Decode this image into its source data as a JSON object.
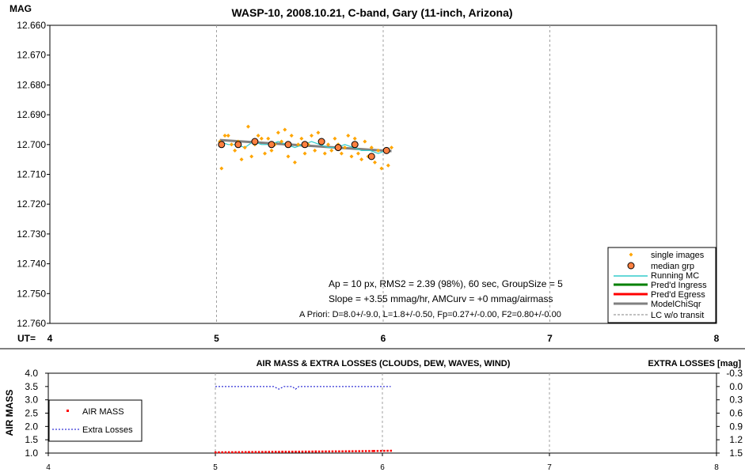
{
  "chart_data": [
    {
      "type": "scatter",
      "title": "WASP-10, 2008.10.21, C-band, Gary (11-inch, Arizona)",
      "ylabel": "MAG",
      "xlabel": "UT=",
      "y_inverted": true,
      "xlim": [
        4,
        8
      ],
      "ylim": [
        12.66,
        12.76
      ],
      "x_ticks": [
        "4",
        "5",
        "6",
        "7",
        "8"
      ],
      "y_ticks": [
        "12.660",
        "12.670",
        "12.680",
        "12.690",
        "12.700",
        "12.710",
        "12.720",
        "12.730",
        "12.740",
        "12.750",
        "12.760"
      ],
      "grid": "vertical dashed",
      "legend_position": "bottom-right",
      "legend": [
        "single images",
        "median grp",
        "Running MC",
        "Pred'd Ingress",
        "Pred'd Egress",
        "ModelChiSqr",
        "LC w/o transit"
      ],
      "annotations": [
        "Ap = 10 px, RMS2 = 2.39 (98%), 60 sec, GroupSize = 5",
        "Slope = +3.55 mmag/hr, AMCurv = +0 mmag/airmass",
        "A Priori: D=8.0+/-9.0, L=1.8+/-0.50, Fp=0.27+/-0.00, F2=0.80+/-0.00"
      ],
      "series": [
        {
          "name": "single images",
          "color": "#FFA500",
          "points": [
            [
              5.02,
              12.699
            ],
            [
              5.03,
              12.708
            ],
            [
              5.05,
              12.697
            ],
            [
              5.07,
              12.697
            ],
            [
              5.09,
              12.7
            ],
            [
              5.11,
              12.702
            ],
            [
              5.13,
              12.699
            ],
            [
              5.15,
              12.705
            ],
            [
              5.17,
              12.701
            ],
            [
              5.19,
              12.694
            ],
            [
              5.21,
              12.704
            ],
            [
              5.23,
              12.7
            ],
            [
              5.25,
              12.697
            ],
            [
              5.27,
              12.698
            ],
            [
              5.29,
              12.703
            ],
            [
              5.31,
              12.698
            ],
            [
              5.33,
              12.702
            ],
            [
              5.35,
              12.7
            ],
            [
              5.37,
              12.696
            ],
            [
              5.39,
              12.699
            ],
            [
              5.41,
              12.695
            ],
            [
              5.43,
              12.704
            ],
            [
              5.45,
              12.697
            ],
            [
              5.47,
              12.706
            ],
            [
              5.49,
              12.7
            ],
            [
              5.51,
              12.698
            ],
            [
              5.53,
              12.703
            ],
            [
              5.55,
              12.7
            ],
            [
              5.57,
              12.697
            ],
            [
              5.59,
              12.702
            ],
            [
              5.61,
              12.696
            ],
            [
              5.63,
              12.699
            ],
            [
              5.65,
              12.703
            ],
            [
              5.67,
              12.7
            ],
            [
              5.69,
              12.702
            ],
            [
              5.71,
              12.698
            ],
            [
              5.73,
              12.7
            ],
            [
              5.75,
              12.703
            ],
            [
              5.77,
              12.701
            ],
            [
              5.79,
              12.697
            ],
            [
              5.81,
              12.704
            ],
            [
              5.83,
              12.698
            ],
            [
              5.85,
              12.703
            ],
            [
              5.87,
              12.705
            ],
            [
              5.89,
              12.699
            ],
            [
              5.91,
              12.704
            ],
            [
              5.93,
              12.701
            ],
            [
              5.95,
              12.706
            ],
            [
              5.97,
              12.702
            ],
            [
              5.99,
              12.708
            ],
            [
              6.01,
              12.702
            ],
            [
              6.03,
              12.707
            ],
            [
              6.05,
              12.701
            ]
          ]
        },
        {
          "name": "median grp",
          "color": "#FF8040",
          "points": [
            [
              5.03,
              12.7
            ],
            [
              5.13,
              12.7
            ],
            [
              5.23,
              12.699
            ],
            [
              5.33,
              12.7
            ],
            [
              5.43,
              12.7
            ],
            [
              5.53,
              12.7
            ],
            [
              5.63,
              12.699
            ],
            [
              5.73,
              12.701
            ],
            [
              5.83,
              12.7
            ],
            [
              5.93,
              12.704
            ],
            [
              6.02,
              12.702
            ]
          ]
        },
        {
          "name": "Running MC",
          "color": "#33CCCC",
          "points": [
            [
              5.02,
              12.699
            ],
            [
              5.07,
              12.7
            ],
            [
              5.12,
              12.7
            ],
            [
              5.17,
              12.701
            ],
            [
              5.22,
              12.699
            ],
            [
              5.27,
              12.7
            ],
            [
              5.32,
              12.7
            ],
            [
              5.37,
              12.699
            ],
            [
              5.42,
              12.7
            ],
            [
              5.47,
              12.701
            ],
            [
              5.52,
              12.7
            ],
            [
              5.57,
              12.699
            ],
            [
              5.62,
              12.7
            ],
            [
              5.67,
              12.701
            ],
            [
              5.72,
              12.701
            ],
            [
              5.77,
              12.7
            ],
            [
              5.82,
              12.701
            ],
            [
              5.87,
              12.702
            ],
            [
              5.92,
              12.702
            ],
            [
              5.97,
              12.703
            ],
            [
              6.02,
              12.702
            ]
          ]
        },
        {
          "name": "ModelChiSqr",
          "color": "#808080",
          "points": [
            [
              5.02,
              12.6985
            ],
            [
              6.05,
              12.7022
            ]
          ]
        }
      ]
    },
    {
      "type": "line",
      "title": "AIR MASS & EXTRA LOSSES (CLOUDS, DEW, WAVES, WIND)",
      "ylabel": "AIR MASS",
      "y2label": "EXTRA LOSSES [mag]",
      "xlim": [
        4,
        8
      ],
      "ylim": [
        1.0,
        4.0
      ],
      "y2lim": [
        -0.3,
        1.5
      ],
      "x_ticks": [
        "4",
        "5",
        "6",
        "7",
        "8"
      ],
      "y_ticks": [
        "4.0",
        "3.5",
        "3.0",
        "2.5",
        "2.0",
        "1.5",
        "1.0"
      ],
      "y2_ticks": [
        "-0.3",
        "0.0",
        "0.3",
        "0.6",
        "0.9",
        "1.2",
        "1.5"
      ],
      "legend_position": "bottom-left",
      "legend": [
        "AIR MASS",
        "Extra Losses"
      ],
      "series": [
        {
          "name": "AIR MASS",
          "color": "#FF0000",
          "points": [
            [
              5.0,
              1.02
            ],
            [
              5.2,
              1.03
            ],
            [
              5.4,
              1.04
            ],
            [
              5.6,
              1.05
            ],
            [
              5.8,
              1.06
            ],
            [
              5.95,
              1.07
            ],
            [
              6.05,
              1.08
            ]
          ]
        },
        {
          "name": "Extra Losses",
          "color": "#0000CC",
          "points": [
            [
              5.0,
              0.0
            ],
            [
              5.35,
              0.0
            ],
            [
              5.38,
              0.06
            ],
            [
              5.41,
              0.0
            ],
            [
              5.46,
              0.0
            ],
            [
              5.48,
              0.06
            ],
            [
              5.5,
              0.0
            ],
            [
              6.05,
              0.0
            ]
          ]
        }
      ]
    }
  ]
}
